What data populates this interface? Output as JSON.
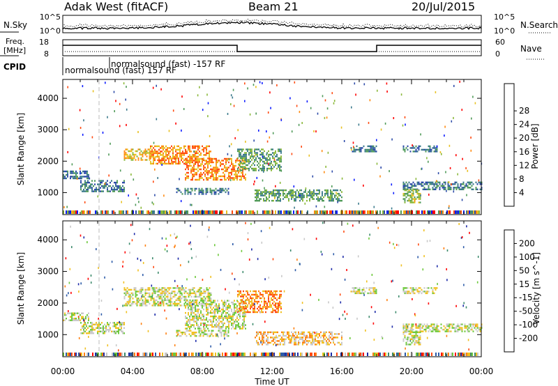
{
  "header": {
    "station": "Adak West (fitACF)",
    "beam": "Beam 21",
    "date": "20/Jul/2015"
  },
  "strips": {
    "nsky": {
      "label": "N.Sky",
      "tick_top": "10^5",
      "tick_bottom": "10^0"
    },
    "freq": {
      "label_line1": "Freq.",
      "label_line2": "[MHz]",
      "tick_top": "18",
      "tick_bottom": "8"
    },
    "cpid": {
      "label": "CPID",
      "run1": "normalsound (fast) 157 RF",
      "run2": "normalsound (fast) -157 RF"
    },
    "right": {
      "nsearch": "N.Search",
      "nave": "Nave",
      "nsearch_tick_top": "10^5",
      "nsearch_tick_bottom": "10^0",
      "nave_tick_top": "60",
      "nave_tick_bottom": "0"
    }
  },
  "chart_data": [
    {
      "type": "heatmap",
      "panel": "power",
      "ylabel": "Slant Range [km]",
      "ylim": [
        300,
        4600
      ],
      "yticks": [
        "1000",
        "2000",
        "3000",
        "4000"
      ],
      "xlim_hours": [
        0,
        24
      ],
      "colorbar": {
        "label": "Power [dB]",
        "ticks": [
          "4",
          "8",
          "12",
          "16",
          "20",
          "24",
          "28"
        ],
        "colors": [
          "#0a1aff",
          "#2c4aa8",
          "#3b7a8c",
          "#4f9a58",
          "#8ab83a",
          "#e8c020",
          "#ff8a10",
          "#ff4a10",
          "#ff0000"
        ]
      },
      "echo_regions": [
        {
          "t0": 0.0,
          "t1": 1.5,
          "r0": 1450,
          "r1": 1700,
          "level": 2
        },
        {
          "t0": 1.0,
          "t1": 3.5,
          "r0": 1050,
          "r1": 1400,
          "level": 2
        },
        {
          "t0": 3.5,
          "t1": 5.0,
          "r0": 2050,
          "r1": 2400,
          "level": 5
        },
        {
          "t0": 5.0,
          "t1": 8.5,
          "r0": 1900,
          "r1": 2500,
          "level": 6
        },
        {
          "t0": 7.0,
          "t1": 10.5,
          "r0": 1400,
          "r1": 2100,
          "level": 6
        },
        {
          "t0": 10.0,
          "t1": 12.5,
          "r0": 1700,
          "r1": 2400,
          "level": 3
        },
        {
          "t0": 11.0,
          "t1": 16.0,
          "r0": 750,
          "r1": 1100,
          "level": 3
        },
        {
          "t0": 6.5,
          "t1": 9.5,
          "r0": 950,
          "r1": 1150,
          "level": 2
        },
        {
          "t0": 16.5,
          "t1": 18.0,
          "r0": 2300,
          "r1": 2500,
          "level": 2
        },
        {
          "t0": 19.5,
          "t1": 21.5,
          "r0": 2300,
          "r1": 2500,
          "level": 2
        },
        {
          "t0": 19.5,
          "t1": 24.0,
          "r0": 1100,
          "r1": 1350,
          "level": 2
        },
        {
          "t0": 19.5,
          "t1": 20.5,
          "r0": 700,
          "r1": 1100,
          "level": 4
        }
      ]
    },
    {
      "type": "heatmap",
      "panel": "velocity",
      "ylabel": "Slant Range [km]",
      "ylim": [
        300,
        4600
      ],
      "yticks": [
        "1000",
        "2000",
        "3000",
        "4000"
      ],
      "xlim_hours": [
        0,
        24
      ],
      "xticks": [
        "00:00",
        "04:00",
        "08:00",
        "12:00",
        "16:00",
        "20:00",
        "00:00"
      ],
      "xlabel": "Time UT",
      "colorbar": {
        "label": "Velocity [m s^-1]",
        "ticks": [
          "200",
          "100",
          "50",
          "15",
          "-15",
          "-50",
          "-100",
          "-200"
        ],
        "colors": [
          "#1c2aa8",
          "#2c5aa8",
          "#3c8a6c",
          "#6cc83a",
          "#c8c8c8",
          "#f0c020",
          "#ff8010",
          "#ff4a10",
          "#ff0000"
        ]
      },
      "echo_regions": [
        {
          "t0": 0.0,
          "t1": 1.5,
          "r0": 1450,
          "r1": 1700,
          "level": 4
        },
        {
          "t0": 1.0,
          "t1": 3.5,
          "r0": 1050,
          "r1": 1400,
          "level": 4
        },
        {
          "t0": 3.5,
          "t1": 8.5,
          "r0": 1900,
          "r1": 2500,
          "level": 4
        },
        {
          "t0": 7.0,
          "t1": 10.5,
          "r0": 1200,
          "r1": 2100,
          "level": 4
        },
        {
          "t0": 10.0,
          "t1": 12.5,
          "r0": 1700,
          "r1": 2400,
          "level": 6
        },
        {
          "t0": 11.0,
          "t1": 16.0,
          "r0": 700,
          "r1": 1100,
          "level": 5
        },
        {
          "t0": 6.5,
          "t1": 9.5,
          "r0": 950,
          "r1": 1150,
          "level": 4
        },
        {
          "t0": 16.5,
          "t1": 18.0,
          "r0": 2300,
          "r1": 2500,
          "level": 4
        },
        {
          "t0": 19.5,
          "t1": 21.5,
          "r0": 2300,
          "r1": 2500,
          "level": 4
        },
        {
          "t0": 19.5,
          "t1": 24.0,
          "r0": 1100,
          "r1": 1350,
          "level": 4
        },
        {
          "t0": 19.5,
          "t1": 20.5,
          "r0": 700,
          "r1": 1100,
          "level": 4
        }
      ]
    }
  ]
}
